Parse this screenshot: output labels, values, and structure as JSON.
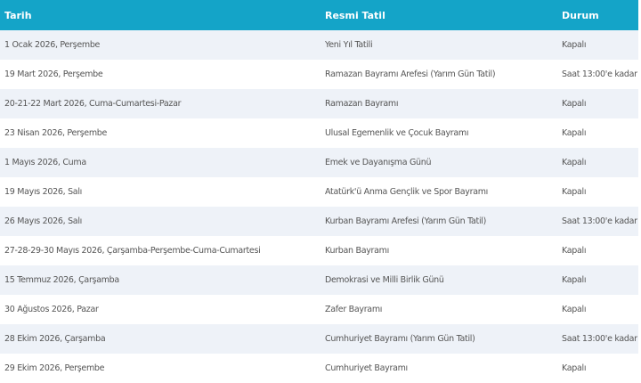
{
  "table": {
    "columns": [
      "Tarih",
      "Resmi Tatil",
      "Durum"
    ],
    "rows": [
      [
        "1 Ocak 2026, Perşembe",
        "Yeni Yıl Tatili",
        "Kapalı"
      ],
      [
        "19 Mart 2026, Perşembe",
        "Ramazan Bayramı Arefesi (Yarım Gün Tatil)",
        "Saat 13:00'e kadar"
      ],
      [
        "20-21-22 Mart 2026, Cuma-Cumartesi-Pazar",
        "Ramazan Bayramı",
        "Kapalı"
      ],
      [
        "23 Nisan 2026, Perşembe",
        "Ulusal Egemenlik ve Çocuk Bayramı",
        "Kapalı"
      ],
      [
        "1 Mayıs 2026, Cuma",
        "Emek ve Dayanışma Günü",
        "Kapalı"
      ],
      [
        "19 Mayıs 2026, Salı",
        "Atatürk'ü Anma Gençlik ve Spor Bayramı",
        "Kapalı"
      ],
      [
        "26 Mayıs 2026, Salı",
        "Kurban Bayramı Arefesi (Yarım Gün Tatil)",
        "Saat 13:00'e kadar"
      ],
      [
        "27-28-29-30 Mayıs 2026, Çarşamba-Perşembe-Cuma-Cumartesi",
        "Kurban Bayramı",
        "Kapalı"
      ],
      [
        "15 Temmuz 2026, Çarşamba",
        "Demokrasi ve Milli Birlik Günü",
        "Kapalı"
      ],
      [
        "30 Ağustos 2026, Pazar",
        "Zafer Bayramı",
        "Kapalı"
      ],
      [
        "28 Ekim 2026, Çarşamba",
        "Cumhuriyet Bayramı (Yarım Gün Tatil)",
        "Saat 13:00'e kadar"
      ],
      [
        "29 Ekim 2026, Perşembe",
        "Cumhuriyet Bayramı",
        "Kapalı"
      ]
    ]
  }
}
